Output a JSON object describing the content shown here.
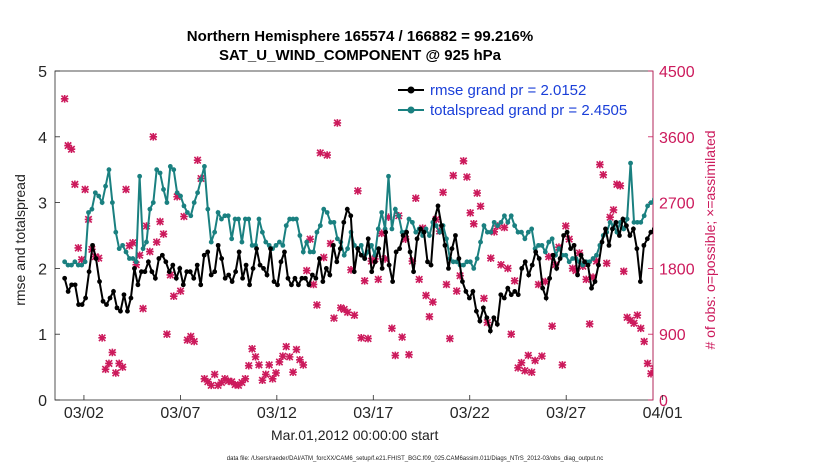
{
  "chart_data": {
    "type": "line",
    "title": "Northern Hemisphere 165574 / 166882 = 99.216%",
    "subtitle": "SAT_U_WIND_COMPONENT @ 925 hPa",
    "ylabel": "rmse and totalspread",
    "ylabel_right": "# of obs: o=possible; ×=assimilated",
    "xlabel": "Mar.01,2012 00:00:00 start",
    "footer": "data file: /Users/raeder/DAI/ATM_forcXX/CAM6_setup/f.e21.FHIST_BGC.f09_025.CAM6assim.011/Diags_NTrS_2012-03/obs_diag_output.nc",
    "x_range_days": [
      0.5,
      31.5
    ],
    "ylim": [
      0,
      5
    ],
    "y2lim": [
      0,
      4500
    ],
    "xticks": [
      {
        "day": 2,
        "label": "03/02"
      },
      {
        "day": 7,
        "label": "03/07"
      },
      {
        "day": 12,
        "label": "03/12"
      },
      {
        "day": 17,
        "label": "03/17"
      },
      {
        "day": 22,
        "label": "03/22"
      },
      {
        "day": 27,
        "label": "03/27"
      },
      {
        "day": 32,
        "label": "04/01"
      }
    ],
    "yticks": [
      0,
      1,
      2,
      3,
      4,
      5
    ],
    "y2ticks": [
      0,
      900,
      1800,
      2700,
      3600,
      4500
    ],
    "legend_position": "top-right",
    "colors": {
      "rmse": "#000000",
      "spread": "#1a8080",
      "obs": "#cc1a5c",
      "legend_text": "#1a3fd9"
    },
    "series": [
      {
        "name": "rmse grand pr = 2.0152",
        "key": "rmse",
        "values": [
          1.85,
          1.65,
          1.75,
          1.75,
          1.45,
          1.45,
          1.55,
          1.95,
          2.35,
          2.15,
          1.8,
          1.5,
          1.45,
          1.55,
          1.65,
          1.4,
          1.35,
          1.6,
          1.35,
          1.55,
          2.0,
          1.75,
          1.95,
          1.95,
          2.1,
          1.95,
          1.85,
          2.15,
          2.2,
          2.1,
          1.95,
          2.05,
          1.85,
          2.0,
          1.75,
          1.95,
          1.95,
          1.85,
          2.05,
          1.75,
          2.2,
          2.25,
          1.9,
          1.95,
          2.35,
          2.15,
          1.85,
          1.9,
          1.8,
          1.95,
          2.25,
          1.85,
          2.05,
          1.75,
          2.0,
          2.3,
          2.05,
          2.0,
          1.9,
          2.3,
          1.8,
          1.75,
          2.1,
          2.25,
          1.85,
          1.75,
          1.85,
          1.75,
          1.85,
          1.85,
          1.75,
          1.9,
          1.85,
          2.15,
          1.8,
          2.0,
          1.9,
          2.35,
          2.1,
          2.3,
          2.7,
          2.9,
          2.8,
          1.95,
          2.3,
          2.2,
          2.15,
          2.45,
          1.95,
          2.1,
          2.3,
          2.0,
          2.55,
          2.05,
          1.8,
          2.25,
          2.3,
          2.5,
          2.55,
          2.25,
          1.95,
          2.45,
          2.6,
          2.55,
          2.1,
          2.05,
          2.75,
          2.95,
          2.65,
          2.35,
          2.0,
          2.3,
          2.5,
          2.15,
          1.8,
          1.65,
          1.55,
          1.65,
          1.35,
          1.2,
          1.4,
          1.25,
          1.05,
          1.25,
          1.15,
          1.6,
          1.55,
          1.7,
          1.6,
          1.65,
          1.6,
          2.0,
          2.1,
          1.9,
          2.05,
          2.25,
          2.15,
          1.7,
          1.55,
          1.85,
          2.2,
          2.0,
          2.15,
          2.5,
          2.55,
          2.3,
          2.35,
          1.9,
          2.2,
          2.1,
          2.05,
          1.7,
          1.8,
          2.05,
          2.4,
          2.6,
          2.35,
          2.6,
          2.7,
          2.5,
          2.75,
          2.65,
          2.5,
          2.6,
          2.3,
          1.8,
          2.35,
          2.45,
          2.55,
          2.6,
          2.6
        ]
      },
      {
        "name": "totalspread grand pr = 2.4505",
        "key": "spread",
        "values": [
          2.1,
          2.05,
          2.05,
          2.1,
          2.05,
          2.05,
          2.1,
          2.85,
          2.9,
          3.15,
          3.1,
          3.0,
          3.25,
          3.5,
          3.0,
          2.55,
          2.3,
          2.35,
          2.25,
          2.15,
          2.15,
          2.1,
          3.4,
          2.3,
          2.4,
          2.9,
          3.0,
          3.5,
          3.45,
          3.2,
          3.0,
          3.55,
          3.5,
          3.15,
          3.1,
          2.95,
          2.85,
          2.8,
          3.0,
          3.15,
          3.35,
          3.55,
          2.9,
          2.4,
          2.55,
          2.85,
          2.75,
          2.8,
          2.8,
          2.45,
          2.75,
          2.75,
          2.4,
          2.75,
          2.75,
          2.35,
          2.35,
          2.75,
          2.55,
          2.4,
          2.35,
          2.3,
          2.35,
          2.4,
          2.35,
          2.65,
          2.75,
          2.75,
          2.75,
          2.5,
          2.25,
          2.4,
          2.25,
          2.25,
          2.55,
          2.65,
          2.9,
          2.85,
          2.7,
          2.7,
          2.45,
          2.4,
          2.2,
          2.3,
          2.55,
          2.35,
          2.3,
          2.35,
          2.15,
          2.25,
          2.35,
          2.2,
          2.6,
          2.85,
          2.6,
          3.4,
          2.6,
          2.9,
          2.8,
          2.55,
          2.55,
          2.75,
          2.7,
          2.55,
          2.6,
          2.5,
          2.6,
          2.5,
          2.7,
          2.65,
          2.55,
          2.65,
          2.45,
          2.15,
          2.1,
          2.1,
          2.05,
          2.05,
          2.1,
          2.1,
          2.0,
          2.15,
          2.4,
          2.65,
          2.55,
          2.55,
          2.7,
          2.65,
          2.7,
          2.8,
          2.7,
          2.8,
          2.65,
          2.55,
          2.55,
          2.45,
          2.55,
          2.6,
          2.3,
          2.35,
          2.35,
          2.25,
          2.4,
          2.45,
          2.2,
          2.3,
          2.2,
          2.2,
          2.1,
          2.15,
          2.15,
          2.1,
          2.05,
          2.1,
          2.1,
          2.15,
          2.2,
          2.35,
          2.5,
          2.55,
          2.7,
          2.65,
          2.55,
          2.7,
          2.6,
          2.75,
          3.6,
          2.7,
          2.7,
          2.7,
          2.8,
          2.95,
          3.0,
          3.05,
          3.1
        ]
      },
      {
        "name": "obs assimilated",
        "key": "obs",
        "axis": "right",
        "values": [
          4120,
          3480,
          3430,
          2950,
          2080,
          1920,
          2880,
          2470,
          2060,
          1960,
          1940,
          850,
          420,
          500,
          650,
          370,
          500,
          450,
          2880,
          2110,
          2150,
          1850,
          1980,
          1250,
          2380,
          2030,
          3600,
          2160,
          2440,
          2270,
          900,
          1710,
          1420,
          2780,
          1490,
          2510,
          820,
          870,
          800,
          3280,
          3030,
          290,
          250,
          200,
          350,
          200,
          240,
          290,
          260,
          250,
          210,
          200,
          240,
          290,
          470,
          700,
          590,
          480,
          270,
          350,
          480,
          290,
          370,
          520,
          600,
          730,
          590,
          380,
          690,
          550,
          480,
          1770,
          2200,
          1580,
          1300,
          3380,
          1950,
          3350,
          2140,
          1120,
          3790,
          1260,
          1240,
          1200,
          1780,
          1160,
          2860,
          850,
          1630,
          840,
          1900,
          1930,
          1650,
          2280,
          1930,
          2500,
          980,
          610,
          2520,
          860,
          2200,
          620,
          1900,
          2760,
          1650,
          2350,
          1430,
          1140,
          1340,
          2470,
          2310,
          2840,
          1580,
          840,
          3070,
          1490,
          1700,
          3270,
          3050,
          2560,
          2410,
          2830,
          2650,
          1390,
          1060,
          1940,
          2300,
          2380,
          1850,
          2360,
          1800,
          900,
          1630,
          440,
          510,
          400,
          610,
          380,
          540,
          1580,
          600,
          1620,
          1960,
          1010,
          1850,
          2090,
          480,
          2380,
          2200,
          1800,
          1770,
          2010,
          1830,
          1650,
          1040,
          1680,
          1900,
          3220,
          3080,
          1870,
          2500,
          2600,
          2950,
          2930,
          1760,
          1130,
          1090,
          1050,
          1160,
          980,
          800,
          500,
          360,
          430,
          80
        ]
      }
    ]
  }
}
